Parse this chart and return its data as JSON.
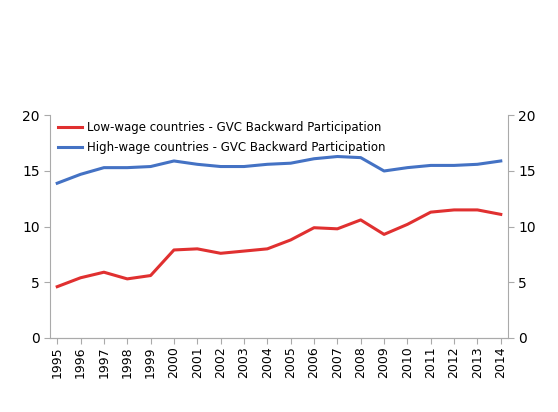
{
  "years": [
    1995,
    1996,
    1997,
    1998,
    1999,
    2000,
    2001,
    2002,
    2003,
    2004,
    2005,
    2006,
    2007,
    2008,
    2009,
    2010,
    2011,
    2012,
    2013,
    2014
  ],
  "low_wage": [
    4.6,
    5.4,
    5.9,
    5.3,
    5.6,
    7.9,
    8.0,
    7.6,
    7.8,
    8.0,
    8.8,
    9.9,
    9.8,
    10.6,
    9.3,
    10.2,
    11.3,
    11.5,
    11.5,
    11.1
  ],
  "high_wage": [
    13.9,
    14.7,
    15.3,
    15.3,
    15.4,
    15.9,
    15.6,
    15.4,
    15.4,
    15.6,
    15.7,
    16.1,
    16.3,
    16.2,
    15.0,
    15.3,
    15.5,
    15.5,
    15.6,
    15.9
  ],
  "low_wage_color": "#e03030",
  "high_wage_color": "#4472c4",
  "low_wage_label": "Low-wage countries - GVC Backward Participation",
  "high_wage_label": "High-wage countries - GVC Backward Participation",
  "ylim": [
    0,
    20
  ],
  "yticks": [
    0,
    5,
    10,
    15,
    20
  ],
  "linewidth": 2.2,
  "background_color": "#ffffff",
  "spine_color": "#aaaaaa",
  "tick_color": "#aaaaaa"
}
